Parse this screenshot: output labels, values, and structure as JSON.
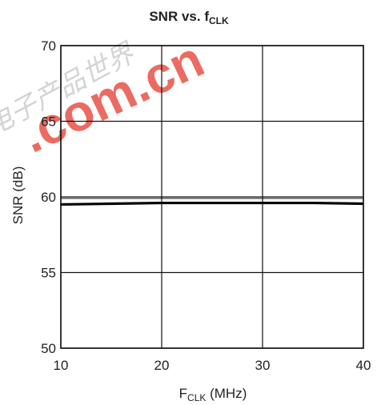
{
  "chart_data": {
    "type": "line",
    "title_main": "SNR vs. f",
    "title_sub": "CLK",
    "xlabel_main": "F",
    "xlabel_sub": "CLK",
    "xlabel_unit": " (MHz)",
    "ylabel": "SNR (dB)",
    "xlim": [
      10,
      40
    ],
    "ylim": [
      50,
      70
    ],
    "x_ticks": [
      10,
      20,
      30,
      40
    ],
    "y_ticks": [
      50,
      55,
      60,
      65,
      70
    ],
    "grid": true,
    "series": [
      {
        "x": [
          10,
          15,
          20,
          25,
          30,
          35,
          40
        ],
        "y": [
          59.5,
          59.55,
          59.6,
          59.6,
          59.6,
          59.6,
          59.55
        ]
      }
    ],
    "reference_line_y": 59.9
  },
  "watermark": {
    "text": ".com.cn",
    "cn_text": "电子产品世界",
    "color": "#e43a2e"
  }
}
